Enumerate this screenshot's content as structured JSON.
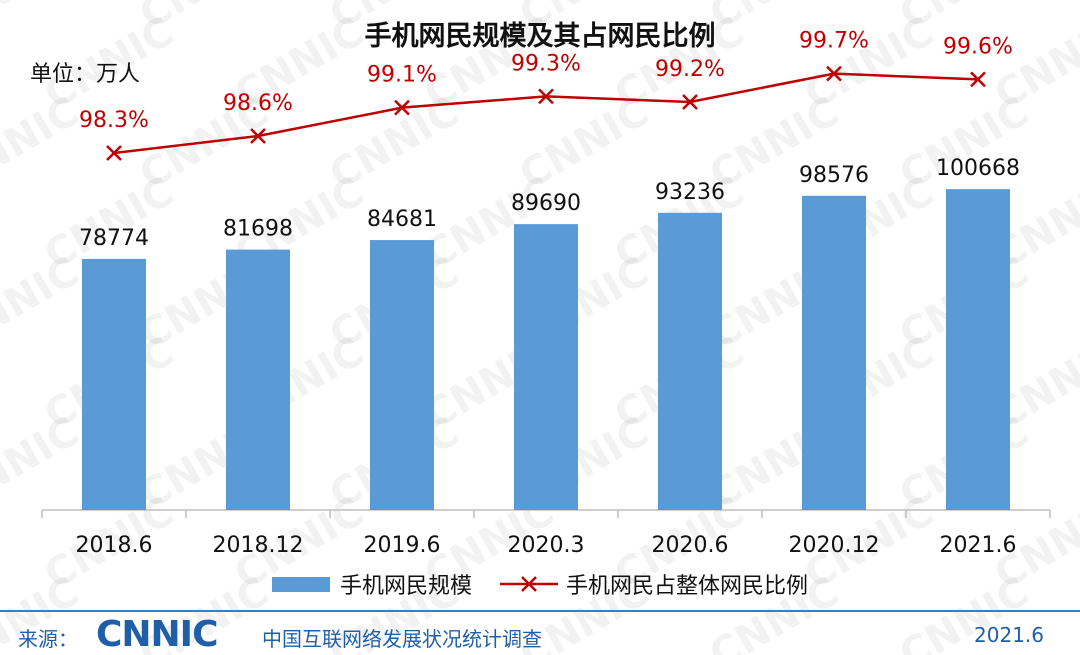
{
  "watermark_text": "CNNIC",
  "unit_label": "单位：万人",
  "chart_data": {
    "type": "bar",
    "title": "手机网民规模及其占网民比例",
    "categories": [
      "2018.6",
      "2018.12",
      "2019.6",
      "2020.3",
      "2020.6",
      "2020.12",
      "2021.6"
    ],
    "series": [
      {
        "name": "手机网民规模",
        "type": "bar",
        "color": "#5B9BD5",
        "values": [
          78774,
          81698,
          84681,
          89690,
          93236,
          98576,
          100668
        ],
        "labels": [
          "78774",
          "81698",
          "84681",
          "89690",
          "93236",
          "98576",
          "100668"
        ]
      },
      {
        "name": "手机网民占整体网民比例",
        "type": "line",
        "color": "#C00000",
        "marker": "x",
        "values": [
          98.3,
          98.6,
          99.1,
          99.3,
          99.2,
          99.7,
          99.6
        ],
        "labels": [
          "98.3%",
          "98.6%",
          "99.1%",
          "99.3%",
          "99.2%",
          "99.7%",
          "99.6%"
        ]
      }
    ],
    "ylim_bar": [
      0,
      160000
    ],
    "ylim_line": [
      92,
      101
    ],
    "legend_position": "bottom",
    "grid": false
  },
  "footer": {
    "source_label": "来源：",
    "logo_text": "CNNIC",
    "source_name": "中国互联网络发展状况统计调查",
    "date": "2021.6"
  }
}
